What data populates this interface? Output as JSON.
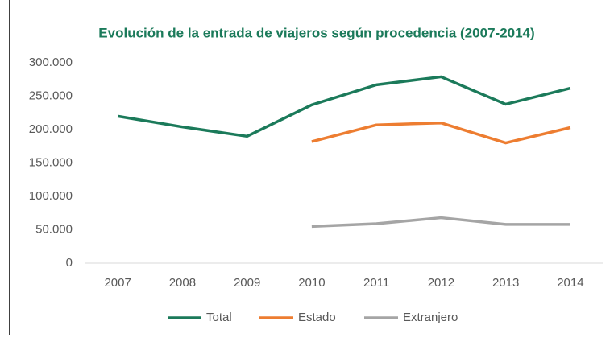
{
  "chart_data": {
    "type": "line",
    "title": "Evolución de la entrada de viajeros según procedencia (2007-2014)",
    "categories": [
      "2007",
      "2008",
      "2009",
      "2010",
      "2011",
      "2012",
      "2013",
      "2014"
    ],
    "series": [
      {
        "name": "Total",
        "color": "#1b7a5a",
        "values": [
          220000,
          204000,
          190000,
          237000,
          267000,
          279000,
          238000,
          262000
        ]
      },
      {
        "name": "Estado",
        "color": "#ed7d31",
        "values": [
          null,
          null,
          null,
          182000,
          207000,
          210000,
          180000,
          203000
        ]
      },
      {
        "name": "Extranjero",
        "color": "#a5a5a5",
        "values": [
          null,
          null,
          null,
          55000,
          59000,
          68000,
          58000,
          58000
        ]
      }
    ],
    "ylim": [
      0,
      300000
    ],
    "yticks": [
      0,
      {
        "value": 50000,
        "label": "50.000"
      },
      {
        "value": 100000,
        "label": "100.000"
      },
      {
        "value": 150000,
        "label": "150.000"
      },
      {
        "value": 200000,
        "label": "200.000"
      },
      {
        "value": 250000,
        "label": "250.000"
      },
      {
        "value": 300000,
        "label": "300.000"
      }
    ],
    "grid": false,
    "legend": "bottom"
  }
}
